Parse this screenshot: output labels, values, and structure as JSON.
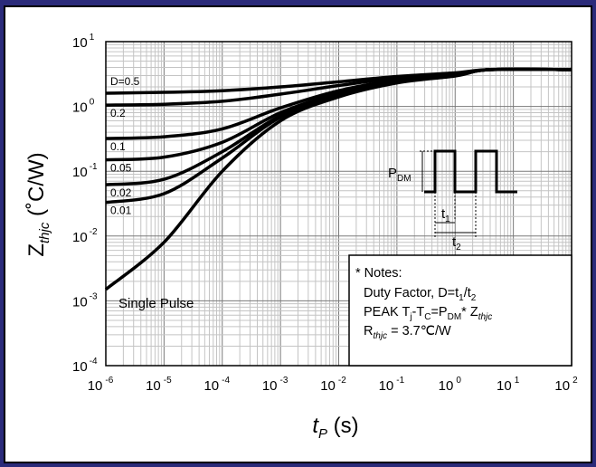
{
  "chart_data": {
    "type": "line",
    "xscale": "log",
    "yscale": "log",
    "xlim": [
      1e-06,
      100
    ],
    "ylim": [
      0.0001,
      10
    ],
    "grid": true,
    "x_tick_labels": [
      {
        "base": "10",
        "exp": "-6"
      },
      {
        "base": "10",
        "exp": "-5"
      },
      {
        "base": "10",
        "exp": "-4"
      },
      {
        "base": "10",
        "exp": "-3"
      },
      {
        "base": "10",
        "exp": "-2"
      },
      {
        "base": "10",
        "exp": "-1"
      },
      {
        "base": "10",
        "exp": "0"
      },
      {
        "base": "10",
        "exp": "1"
      },
      {
        "base": "10",
        "exp": "2"
      }
    ],
    "y_tick_labels": [
      {
        "base": "10",
        "exp": "1"
      },
      {
        "base": "10",
        "exp": "0"
      },
      {
        "base": "10",
        "exp": "-1"
      },
      {
        "base": "10",
        "exp": "-2"
      },
      {
        "base": "10",
        "exp": "-3"
      },
      {
        "base": "10",
        "exp": "-4"
      }
    ],
    "xlabel": {
      "main": "t",
      "sub": "P",
      "unit": " (s)"
    },
    "ylabel": {
      "main": "Z",
      "sub": "thjc",
      "unit": " (˚C/W)"
    },
    "series": [
      {
        "name": "D=0.5",
        "x": [
          1e-06,
          1e-05,
          0.0001,
          0.001,
          0.01,
          0.1,
          1,
          4,
          100
        ],
        "y": [
          1.6,
          1.65,
          1.75,
          2.0,
          2.4,
          2.9,
          3.3,
          3.7,
          3.7
        ]
      },
      {
        "name": "0.2",
        "x": [
          1e-06,
          1e-05,
          0.0001,
          0.001,
          0.01,
          0.1,
          1,
          4,
          100
        ],
        "y": [
          1.05,
          1.08,
          1.2,
          1.55,
          2.1,
          2.75,
          3.2,
          3.7,
          3.7
        ]
      },
      {
        "name": "0.1",
        "x": [
          1e-06,
          1e-05,
          0.0001,
          0.001,
          0.01,
          0.1,
          1,
          4,
          100
        ],
        "y": [
          0.32,
          0.34,
          0.45,
          0.95,
          1.75,
          2.55,
          3.1,
          3.7,
          3.7
        ]
      },
      {
        "name": "0.05",
        "x": [
          1e-06,
          1e-05,
          0.0001,
          0.001,
          0.01,
          0.1,
          1,
          4,
          100
        ],
        "y": [
          0.15,
          0.165,
          0.28,
          0.8,
          1.6,
          2.45,
          3.05,
          3.7,
          3.7
        ]
      },
      {
        "name": "0.02",
        "x": [
          1e-06,
          1e-05,
          0.0001,
          0.001,
          0.01,
          0.1,
          1,
          4,
          100
        ],
        "y": [
          0.062,
          0.075,
          0.2,
          0.72,
          1.5,
          2.4,
          3.0,
          3.7,
          3.7
        ]
      },
      {
        "name": "0.01",
        "x": [
          1e-06,
          1e-05,
          0.0001,
          0.001,
          0.01,
          0.1,
          1,
          4,
          100
        ],
        "y": [
          0.033,
          0.045,
          0.16,
          0.68,
          1.45,
          2.35,
          3.0,
          3.7,
          3.7
        ]
      },
      {
        "name": "Single Pulse",
        "x": [
          1e-06,
          1e-05,
          0.0001,
          0.001,
          0.01,
          0.1,
          1,
          4,
          100
        ],
        "y": [
          0.0015,
          0.008,
          0.1,
          0.6,
          1.4,
          2.3,
          2.95,
          3.7,
          3.7
        ]
      }
    ],
    "inset": {
      "pdm": "P",
      "pdm_sub": "DM",
      "t1": "t",
      "t1_sub": "1",
      "t2": "t",
      "t2_sub": "2"
    },
    "notes": {
      "title": "* Notes:",
      "duty_pre": "Duty Factor,  D=t",
      "duty_sub1": "1",
      "duty_mid": "/t",
      "duty_sub2": "2",
      "peak_a": "PEAK T",
      "peak_sub_j": "j",
      "peak_b": "-T",
      "peak_sub_c": "C",
      "peak_c": "=P",
      "peak_sub_dm": "DM",
      "peak_d": "* Z",
      "peak_sub_thjc": "thjc",
      "r_a": "R",
      "r_sub": "thjc",
      "r_b": " = 3.7℃/W"
    }
  }
}
